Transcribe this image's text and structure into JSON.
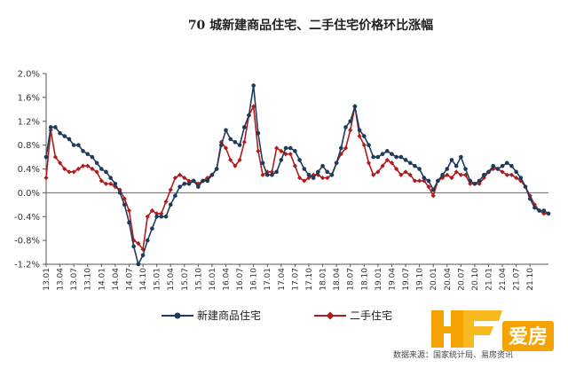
{
  "chart_data": {
    "type": "line",
    "title": "70 城新建商品住宅、二手住宅价格环比涨幅",
    "xlabel": "",
    "ylabel": "",
    "ylim": [
      -1.2,
      2.0
    ],
    "yticks": [
      "2.0%",
      "1.6%",
      "1.2%",
      "0.8%",
      "0.4%",
      "0.0%",
      "-0.4%",
      "-0.8%",
      "-1.2%"
    ],
    "x_tick_labels": [
      "13.01",
      "13.04",
      "13.07",
      "13.10",
      "14.01",
      "14.04",
      "14.07",
      "14.10",
      "15.01",
      "15.04",
      "15.07",
      "15.10",
      "16.01",
      "16.04",
      "16.07",
      "16.10",
      "17.01",
      "17.04",
      "17.07",
      "17.10",
      "18.01",
      "18.04",
      "18.07",
      "18.10",
      "19.01",
      "19.04",
      "19.07",
      "19.10",
      "20.01",
      "20.04",
      "20.07",
      "20.10",
      "21.01",
      "21.04",
      "21.07",
      "21.10"
    ],
    "x_tick_months": [
      0,
      3,
      6,
      9,
      12,
      15,
      18,
      21,
      24,
      27,
      30,
      33,
      36,
      39,
      42,
      45,
      48,
      51,
      54,
      57,
      60,
      63,
      66,
      69,
      72,
      75,
      78,
      81,
      84,
      87,
      90,
      93,
      96,
      99,
      102,
      105
    ],
    "x_range_months": [
      0,
      109
    ],
    "legend_position": "bottom",
    "grid": false,
    "series": [
      {
        "name": "新建商品住宅",
        "color": "#1f3b5c",
        "marker": "circle",
        "values": [
          0.6,
          1.1,
          1.1,
          1.0,
          0.95,
          0.9,
          0.8,
          0.8,
          0.7,
          0.65,
          0.6,
          0.5,
          0.4,
          0.35,
          0.25,
          0.15,
          0.0,
          -0.2,
          -0.5,
          -0.9,
          -1.2,
          -1.05,
          -0.8,
          -0.6,
          -0.4,
          -0.4,
          -0.4,
          -0.2,
          -0.05,
          0.1,
          0.15,
          0.15,
          0.2,
          0.1,
          0.2,
          0.2,
          0.3,
          0.4,
          0.8,
          1.05,
          0.9,
          0.85,
          0.8,
          1.1,
          1.3,
          1.8,
          1.0,
          0.5,
          0.3,
          0.3,
          0.35,
          0.55,
          0.75,
          0.75,
          0.7,
          0.55,
          0.4,
          0.3,
          0.25,
          0.35,
          0.45,
          0.35,
          0.3,
          0.5,
          0.75,
          1.1,
          1.2,
          1.45,
          1.05,
          0.95,
          0.8,
          0.6,
          0.6,
          0.65,
          0.7,
          0.65,
          0.6,
          0.6,
          0.55,
          0.5,
          0.45,
          0.4,
          0.25,
          0.2,
          0.05,
          0.2,
          0.3,
          0.4,
          0.55,
          0.45,
          0.6,
          0.4,
          0.2,
          0.15,
          0.2,
          0.3,
          0.35,
          0.45,
          0.4,
          0.45,
          0.5,
          0.45,
          0.35,
          0.25,
          0.1,
          -0.1,
          -0.25,
          -0.3,
          -0.3,
          -0.35
        ]
      },
      {
        "name": "二手住宅",
        "color": "#b01c1c",
        "marker": "diamond",
        "values": [
          0.25,
          1.05,
          0.6,
          0.5,
          0.4,
          0.35,
          0.35,
          0.4,
          0.45,
          0.45,
          0.4,
          0.35,
          0.2,
          0.15,
          0.15,
          0.1,
          0.05,
          -0.1,
          -0.3,
          -0.8,
          -0.85,
          -0.95,
          -0.4,
          -0.3,
          -0.35,
          -0.35,
          -0.15,
          0.05,
          0.25,
          0.3,
          0.25,
          0.2,
          0.2,
          0.15,
          0.2,
          0.25,
          0.3,
          0.4,
          0.85,
          0.75,
          0.55,
          0.45,
          0.55,
          0.85,
          1.3,
          1.45,
          0.7,
          0.3,
          0.35,
          0.35,
          0.75,
          0.7,
          0.65,
          0.65,
          0.45,
          0.25,
          0.2,
          0.25,
          0.3,
          0.3,
          0.25,
          0.25,
          0.3,
          0.5,
          0.65,
          0.75,
          1.05,
          1.45,
          0.95,
          0.8,
          0.5,
          0.3,
          0.35,
          0.45,
          0.55,
          0.5,
          0.4,
          0.3,
          0.35,
          0.3,
          0.2,
          0.2,
          0.2,
          0.1,
          -0.05,
          0.2,
          0.25,
          0.3,
          0.25,
          0.35,
          0.3,
          0.3,
          0.15,
          0.15,
          0.15,
          0.25,
          0.35,
          0.4,
          0.4,
          0.35,
          0.3,
          0.3,
          0.25,
          0.2,
          0.1,
          -0.05,
          -0.2,
          -0.3,
          -0.35,
          -0.35
        ]
      }
    ]
  },
  "source_note": "数据来源：国家统计局、易房资讯",
  "logo_text": "爱房"
}
